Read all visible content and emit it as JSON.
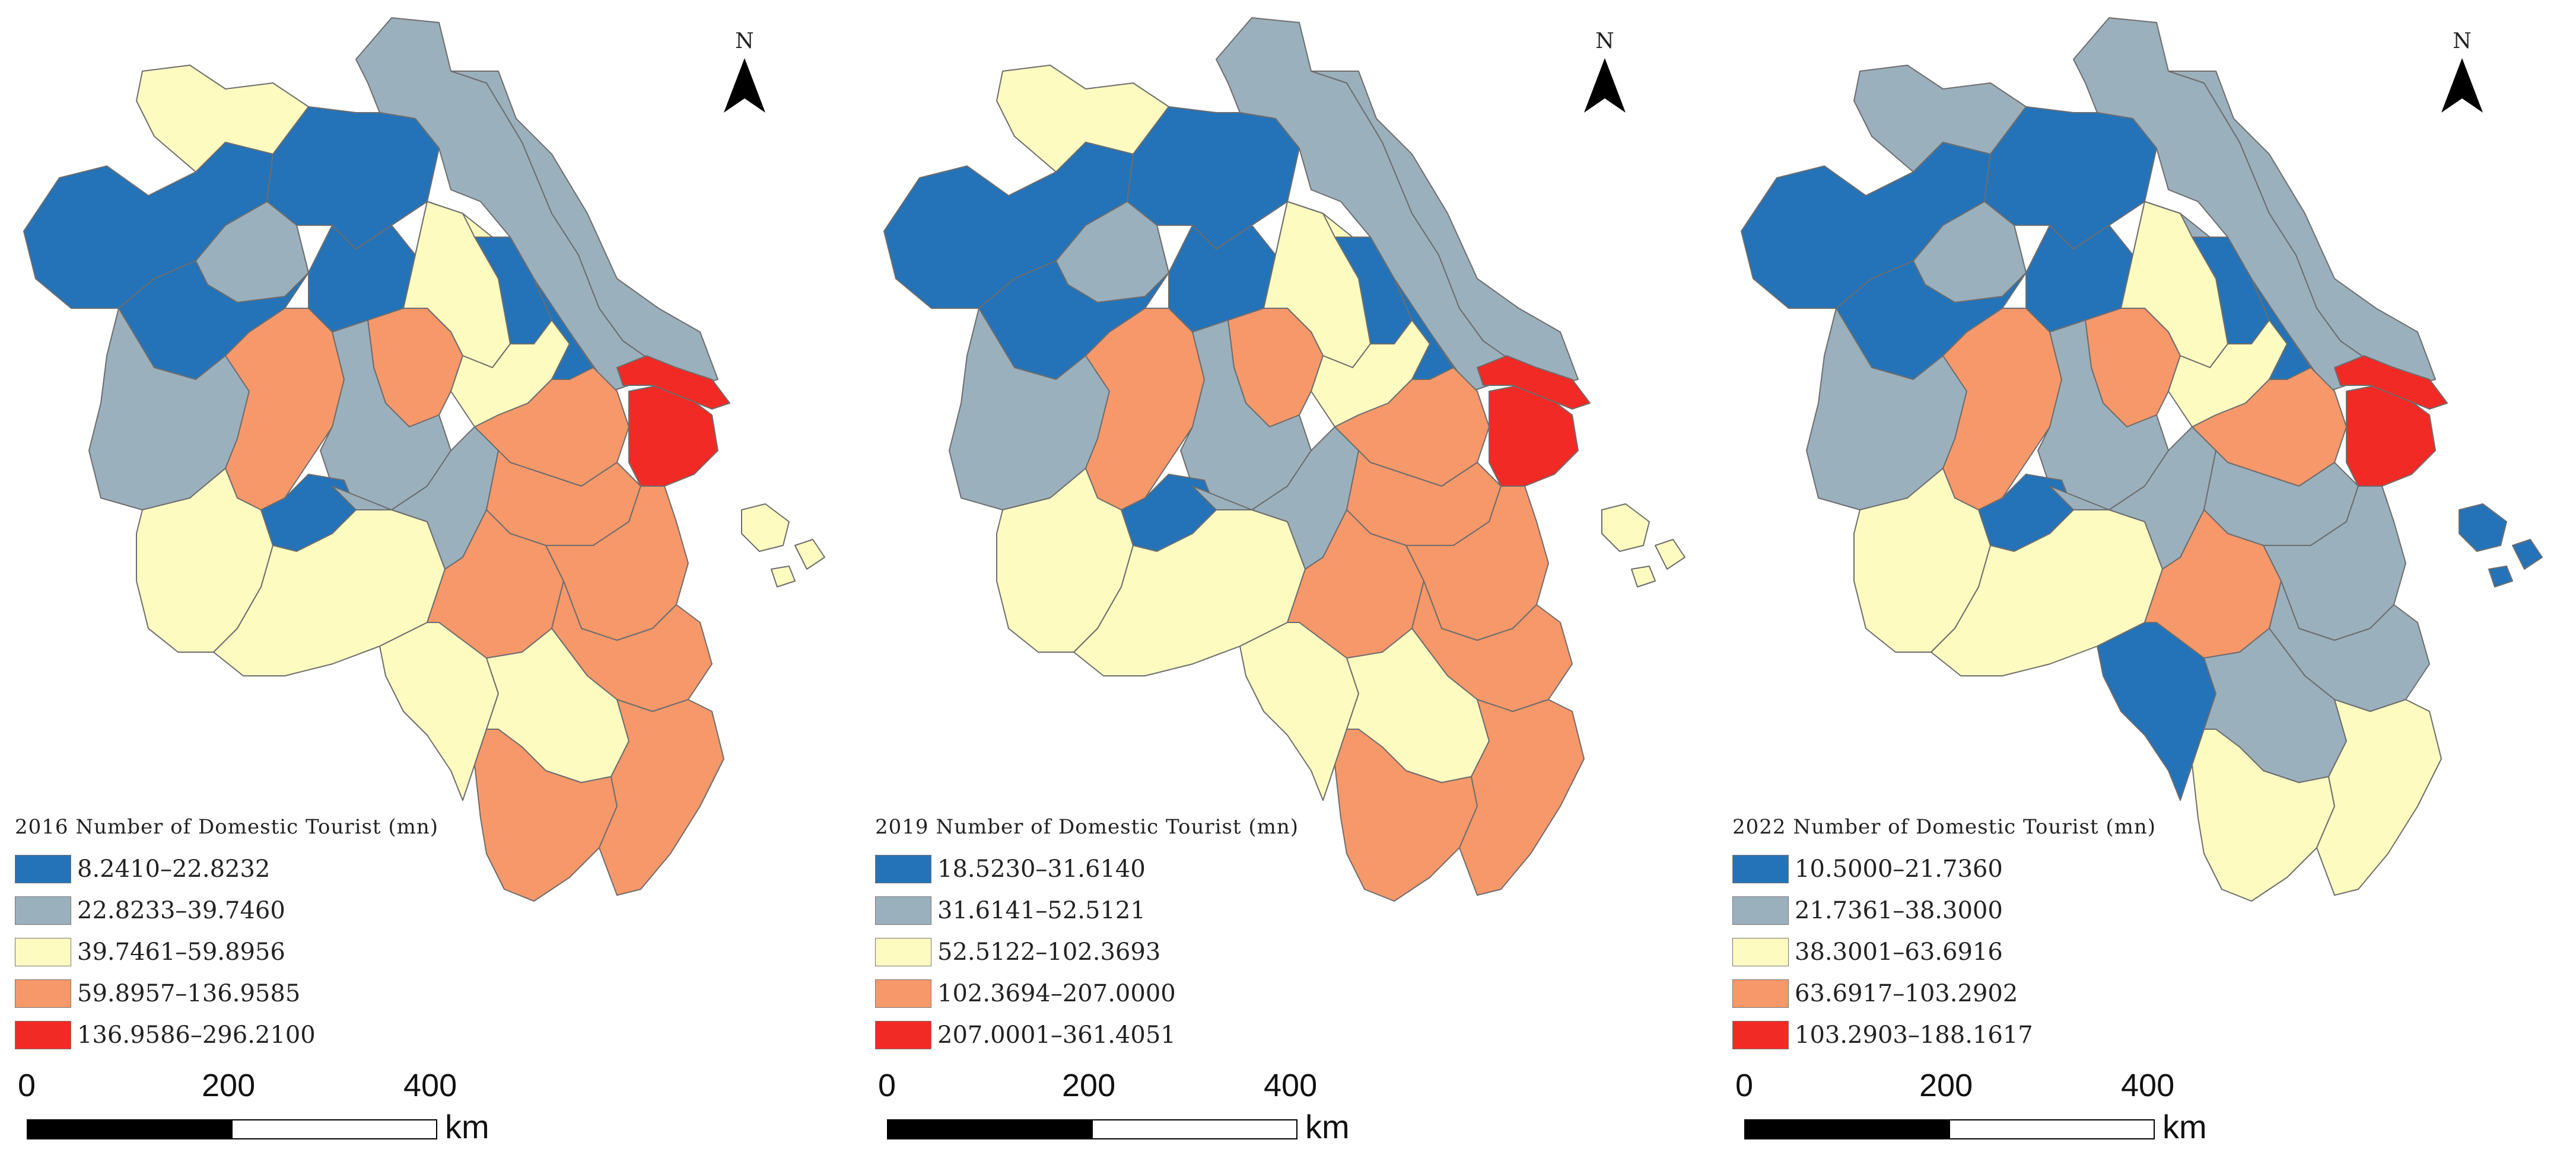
{
  "colors": {
    "class1": "#2473b8",
    "class2": "#9bb0bd",
    "class3": "#fdfbc0",
    "class4": "#f7986a",
    "class5": "#f22a25"
  },
  "north_label": "N",
  "panels": [
    {
      "year_title": "2016  Number of Domestic Tourist (mn)",
      "classes": [
        "8.2410–22.8232",
        "22.8233–39.7460",
        "39.7461–59.8956",
        "59.8957–136.9585",
        "136.9586–296.2100"
      ],
      "scale": {
        "t0": "0",
        "t1": "200",
        "t2": "400",
        "unit": "km"
      }
    },
    {
      "year_title": "2019  Number of Domestic Tourist (mn)",
      "classes": [
        "18.5230–31.6140",
        "31.6141–52.5121",
        "52.5122–102.3693",
        "102.3694–207.0000",
        "207.0001–361.4051"
      ],
      "scale": {
        "t0": "0",
        "t1": "200",
        "t2": "400",
        "unit": "km"
      }
    },
    {
      "year_title": "2022  Number of Domestic Tourist (mn)",
      "classes": [
        "10.5000–21.7360",
        "21.7361–38.3000",
        "38.3001–63.6916",
        "63.6917–103.2902",
        "103.2903–188.1617"
      ],
      "scale": {
        "t0": "0",
        "t1": "200",
        "t2": "400",
        "unit": "km"
      }
    }
  ],
  "region_classes": [
    {
      "name": "northeast-coastal-1",
      "c2016": 2,
      "c2019": 2,
      "c2022": 2
    },
    {
      "name": "northeast-coastal-2",
      "c2016": 2,
      "c2019": 2,
      "c2022": 2
    },
    {
      "name": "north-1",
      "c2016": 3,
      "c2019": 3,
      "c2022": 2
    },
    {
      "name": "north-2",
      "c2016": 3,
      "c2019": 3,
      "c2022": 2
    },
    {
      "name": "northwest-1",
      "c2016": 1,
      "c2019": 1,
      "c2022": 1
    },
    {
      "name": "northwest-2",
      "c2016": 1,
      "c2019": 1,
      "c2022": 1
    },
    {
      "name": "northwest-3",
      "c2016": 1,
      "c2019": 1,
      "c2022": 1
    },
    {
      "name": "center-north-1",
      "c2016": 2,
      "c2019": 2,
      "c2022": 2
    },
    {
      "name": "center-north-2",
      "c2016": 1,
      "c2019": 1,
      "c2022": 1
    },
    {
      "name": "center-north-3",
      "c2016": 1,
      "c2019": 1,
      "c2022": 1
    },
    {
      "name": "center-1",
      "c2016": 3,
      "c2019": 3,
      "c2022": 3
    },
    {
      "name": "center-2",
      "c2016": 4,
      "c2019": 4,
      "c2022": 4
    },
    {
      "name": "center-3",
      "c2016": 3,
      "c2019": 3,
      "c2022": 3
    },
    {
      "name": "center-4",
      "c2016": 1,
      "c2019": 1,
      "c2022": 1
    },
    {
      "name": "west-1",
      "c2016": 2,
      "c2019": 2,
      "c2022": 2
    },
    {
      "name": "west-2",
      "c2016": 4,
      "c2019": 4,
      "c2022": 4
    },
    {
      "name": "west-3",
      "c2016": 2,
      "c2019": 2,
      "c2022": 2
    },
    {
      "name": "southwest-1",
      "c2016": 3,
      "c2019": 3,
      "c2022": 3
    },
    {
      "name": "southwest-2",
      "c2016": 1,
      "c2019": 1,
      "c2022": 1
    },
    {
      "name": "southwest-3",
      "c2016": 3,
      "c2019": 3,
      "c2022": 3
    },
    {
      "name": "center-south-1",
      "c2016": 2,
      "c2019": 2,
      "c2022": 2
    },
    {
      "name": "delta-1",
      "c2016": 4,
      "c2019": 4,
      "c2022": 4
    },
    {
      "name": "delta-2",
      "c2016": 4,
      "c2019": 4,
      "c2022": 2
    },
    {
      "name": "shanghai",
      "c2016": 5,
      "c2019": 5,
      "c2022": 5
    },
    {
      "name": "chongming",
      "c2016": 5,
      "c2019": 5,
      "c2022": 5
    },
    {
      "name": "south-1",
      "c2016": 4,
      "c2019": 4,
      "c2022": 4
    },
    {
      "name": "south-2",
      "c2016": 4,
      "c2019": 4,
      "c2022": 2
    },
    {
      "name": "south-3",
      "c2016": 4,
      "c2019": 4,
      "c2022": 2
    },
    {
      "name": "south-4",
      "c2016": 3,
      "c2019": 3,
      "c2022": 1
    },
    {
      "name": "south-5",
      "c2016": 3,
      "c2019": 3,
      "c2022": 2
    },
    {
      "name": "south-6",
      "c2016": 4,
      "c2019": 4,
      "c2022": 3
    },
    {
      "name": "south-coast",
      "c2016": 4,
      "c2019": 4,
      "c2022": 3
    },
    {
      "name": "zhoushan",
      "c2016": 3,
      "c2019": 3,
      "c2022": 1
    }
  ]
}
